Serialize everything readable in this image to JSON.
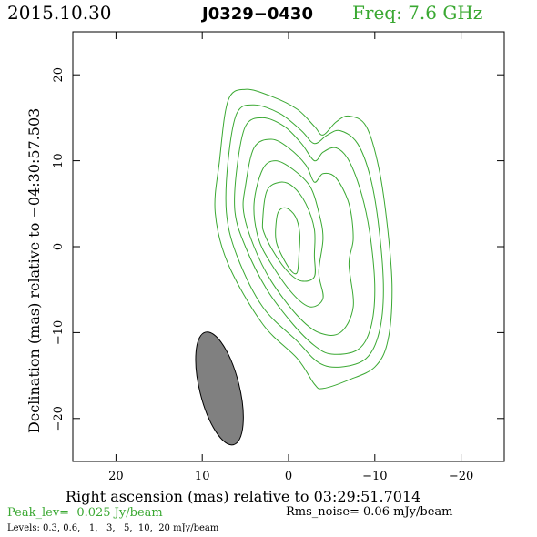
{
  "header": {
    "date": "2015.10.30",
    "source": "J0329−0430",
    "freq": "Freq: 7.6 GHz"
  },
  "colors": {
    "contour": "#3aa832",
    "freq_text": "#3aa832",
    "peak_text": "#3aa832",
    "beam_fill": "#808080",
    "axis": "#000000"
  },
  "chart_data": {
    "type": "contour",
    "xlabel": "Right ascension (mas) relative to 03:29:51.7014",
    "ylabel": "Declination (mas) relative to −04:30:57.503",
    "xlim": [
      25,
      -25
    ],
    "ylim": [
      -25,
      25
    ],
    "xticks": [
      20,
      10,
      0,
      -10,
      -20
    ],
    "xtick_labels": [
      "20",
      "10",
      "0",
      "−10",
      "−20"
    ],
    "yticks": [
      20,
      10,
      0,
      -10,
      -20
    ],
    "ytick_labels": [
      "20",
      "10",
      "0",
      "−10",
      "−20"
    ],
    "peak_label": "Peak_lev=  0.025 Jy/beam",
    "rms_label": "Rms_noise= 0.06 mJy/beam",
    "levels_label": "Levels: 0.3, 0.6,   1,   3,   5,  10,  20 mJy/beam",
    "levels_mjy": [
      0.3,
      0.6,
      1,
      3,
      5,
      10,
      20
    ],
    "beam": {
      "x": 8.0,
      "y": -16.5,
      "major": 13.5,
      "minor": 4.6,
      "pa_deg": 14
    },
    "contours": [
      {
        "level": 0.3,
        "points": [
          [
            8,
            10
          ],
          [
            7,
            17
          ],
          [
            5,
            18.3
          ],
          [
            2,
            17.5
          ],
          [
            -1,
            16
          ],
          [
            -3,
            14
          ],
          [
            -4,
            13
          ],
          [
            -5.5,
            14.5
          ],
          [
            -7,
            15.2
          ],
          [
            -9,
            14
          ],
          [
            -10.5,
            9
          ],
          [
            -11.5,
            2
          ],
          [
            -12,
            -5
          ],
          [
            -11.5,
            -11
          ],
          [
            -10,
            -14
          ],
          [
            -7,
            -15.5
          ],
          [
            -4,
            -16.5
          ],
          [
            -3,
            -16
          ],
          [
            -1,
            -13
          ],
          [
            3,
            -9
          ],
          [
            7,
            -2
          ],
          [
            8.5,
            4
          ],
          [
            8,
            10
          ]
        ]
      },
      {
        "level": 0.6,
        "points": [
          [
            7,
            10
          ],
          [
            6,
            15.5
          ],
          [
            4,
            16.5
          ],
          [
            1,
            15.5
          ],
          [
            -1.5,
            13.5
          ],
          [
            -3,
            12
          ],
          [
            -4.5,
            13
          ],
          [
            -6,
            13.5
          ],
          [
            -8,
            12
          ],
          [
            -9.5,
            8
          ],
          [
            -10.5,
            2
          ],
          [
            -11,
            -5
          ],
          [
            -10.5,
            -10
          ],
          [
            -9,
            -13
          ],
          [
            -6,
            -14
          ],
          [
            -3.5,
            -13.5
          ],
          [
            -1,
            -11
          ],
          [
            3,
            -7
          ],
          [
            6,
            -1
          ],
          [
            7.2,
            4
          ],
          [
            7,
            10
          ]
        ]
      },
      {
        "level": 1,
        "points": [
          [
            6,
            9
          ],
          [
            5,
            14
          ],
          [
            3,
            15
          ],
          [
            0.5,
            14
          ],
          [
            -1.5,
            12
          ],
          [
            -3,
            10
          ],
          [
            -4,
            11
          ],
          [
            -5.5,
            11.5
          ],
          [
            -7,
            10
          ],
          [
            -8.5,
            6
          ],
          [
            -9.5,
            1
          ],
          [
            -10,
            -5
          ],
          [
            -9.5,
            -9.5
          ],
          [
            -8,
            -12
          ],
          [
            -5,
            -12.5
          ],
          [
            -3,
            -11.5
          ],
          [
            -0.5,
            -9
          ],
          [
            2.5,
            -5
          ],
          [
            5,
            0
          ],
          [
            6.2,
            4
          ],
          [
            6,
            9
          ]
        ]
      },
      {
        "level": 3,
        "points": [
          [
            5,
            7
          ],
          [
            4,
            11.5
          ],
          [
            2,
            12.5
          ],
          [
            0,
            11.5
          ],
          [
            -2,
            9.5
          ],
          [
            -3,
            7.5
          ],
          [
            -4,
            8.5
          ],
          [
            -5.5,
            8
          ],
          [
            -7,
            5
          ],
          [
            -7.5,
            1
          ],
          [
            -7,
            -2
          ],
          [
            -7.5,
            -7
          ],
          [
            -6,
            -10
          ],
          [
            -3.5,
            -10
          ],
          [
            -1,
            -8
          ],
          [
            2,
            -4
          ],
          [
            4,
            0
          ],
          [
            5.2,
            4
          ],
          [
            5,
            7
          ]
        ]
      },
      {
        "level": 5,
        "points": [
          [
            4,
            5
          ],
          [
            3,
            9
          ],
          [
            1.5,
            10
          ],
          [
            -0.5,
            9
          ],
          [
            -2.5,
            7
          ],
          [
            -3.5,
            4
          ],
          [
            -4,
            1
          ],
          [
            -3.5,
            -3
          ],
          [
            -4,
            -6
          ],
          [
            -2.5,
            -7
          ],
          [
            -0.5,
            -5.5
          ],
          [
            2,
            -2
          ],
          [
            3.5,
            1
          ],
          [
            4,
            5
          ]
        ]
      },
      {
        "level": 10,
        "points": [
          [
            3,
            3
          ],
          [
            2.5,
            6.5
          ],
          [
            1,
            7.5
          ],
          [
            -0.5,
            7
          ],
          [
            -2,
            5
          ],
          [
            -3,
            2
          ],
          [
            -3,
            -1
          ],
          [
            -3,
            -3.5
          ],
          [
            -1.5,
            -4
          ],
          [
            0,
            -3
          ],
          [
            1.5,
            -1
          ],
          [
            2.8,
            1.5
          ],
          [
            3,
            3
          ]
        ]
      },
      {
        "level": 20,
        "points": [
          [
            1.5,
            2
          ],
          [
            1.2,
            4
          ],
          [
            0.3,
            4.5
          ],
          [
            -0.8,
            3.5
          ],
          [
            -1.3,
            1.5
          ],
          [
            -1.2,
            -1
          ],
          [
            -1,
            -3
          ],
          [
            -0.3,
            -2.8
          ],
          [
            0.8,
            -1
          ],
          [
            1.4,
            0.5
          ],
          [
            1.5,
            2
          ]
        ]
      }
    ]
  }
}
